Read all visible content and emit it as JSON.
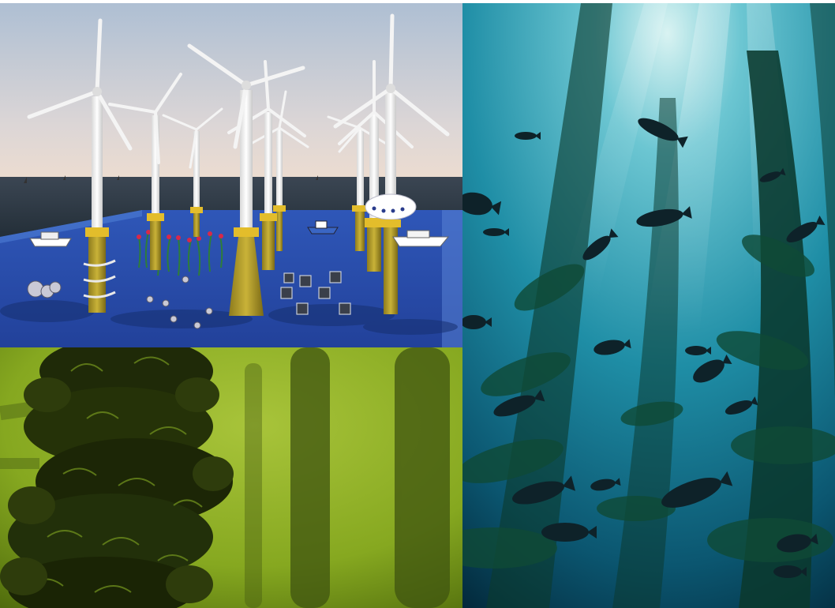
{
  "collage": {
    "panels": [
      {
        "name": "offshore-wind-farm-illustration",
        "colors": {
          "sky_top": "#b7c7d8",
          "sky_bottom": "#e6d7cc",
          "sea": "#2b3844",
          "seabed": "#2749a8",
          "tower": "#f2f2f2",
          "transition_piece": "#e3bd2b"
        }
      },
      {
        "name": "mussel-longline-underwater-photo",
        "colors": {
          "water": "#8fb324",
          "mussel": "#1f2a08"
        }
      },
      {
        "name": "kelp-forest-with-fish-photo",
        "colors": {
          "water_light": "#4fb3c4",
          "water_dark": "#06303f",
          "kelp": "#0b3a2e",
          "fish": "#0e2229"
        }
      }
    ]
  }
}
